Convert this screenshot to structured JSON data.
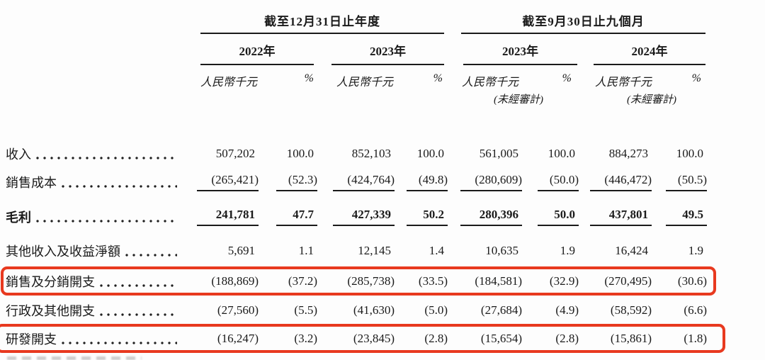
{
  "colors": {
    "highlight_border": "#e8391f",
    "text": "#1a1a1a"
  },
  "table": {
    "unit_header": "人民幣千元",
    "pct_header": "%",
    "groups": [
      {
        "title": "截至12月31日止年度",
        "years": [
          {
            "label": "2022年",
            "note": ""
          },
          {
            "label": "2023年",
            "note": ""
          }
        ]
      },
      {
        "title": "截至9月30日止九個月",
        "years": [
          {
            "label": "2023年",
            "note": "(未經審計)"
          },
          {
            "label": "2024年",
            "note": "(未經審計)"
          }
        ]
      }
    ],
    "rows": [
      {
        "label": "收入",
        "values": [
          "507,202",
          "100.0",
          "852,103",
          "100.0",
          "561,005",
          "100.0",
          "884,273",
          "100.0"
        ],
        "bold": false,
        "underline": false,
        "highlight": false
      },
      {
        "label": "銷售成本",
        "values": [
          "(265,421)",
          "(52.3)",
          "(424,764)",
          "(49.8)",
          "(280,609)",
          "(50.0)",
          "(446,472)",
          "(50.5)"
        ],
        "bold": false,
        "underline": true,
        "highlight": false
      },
      {
        "label": "毛利",
        "values": [
          "241,781",
          "47.7",
          "427,339",
          "50.2",
          "280,396",
          "50.0",
          "437,801",
          "49.5"
        ],
        "bold": true,
        "underline": true,
        "highlight": false
      },
      {
        "label": "其他收入及收益淨額",
        "values": [
          "5,691",
          "1.1",
          "12,145",
          "1.4",
          "10,635",
          "1.9",
          "16,424",
          "1.9"
        ],
        "bold": false,
        "underline": false,
        "highlight": false
      },
      {
        "label": "銷售及分銷開支",
        "values": [
          "(188,869)",
          "(37.2)",
          "(285,738)",
          "(33.5)",
          "(184,581)",
          "(32.9)",
          "(270,495)",
          "(30.6)"
        ],
        "bold": false,
        "underline": false,
        "highlight": true
      },
      {
        "label": "行政及其他開支",
        "values": [
          "(27,560)",
          "(5.5)",
          "(41,630)",
          "(5.0)",
          "(27,684)",
          "(4.9)",
          "(58,592)",
          "(6.6)"
        ],
        "bold": false,
        "underline": false,
        "highlight": false
      },
      {
        "label": "研發開支",
        "values": [
          "(16,247)",
          "(3.2)",
          "(23,845)",
          "(2.8)",
          "(15,654)",
          "(2.8)",
          "(15,861)",
          "(1.8)"
        ],
        "bold": false,
        "underline": false,
        "highlight": true
      }
    ]
  }
}
